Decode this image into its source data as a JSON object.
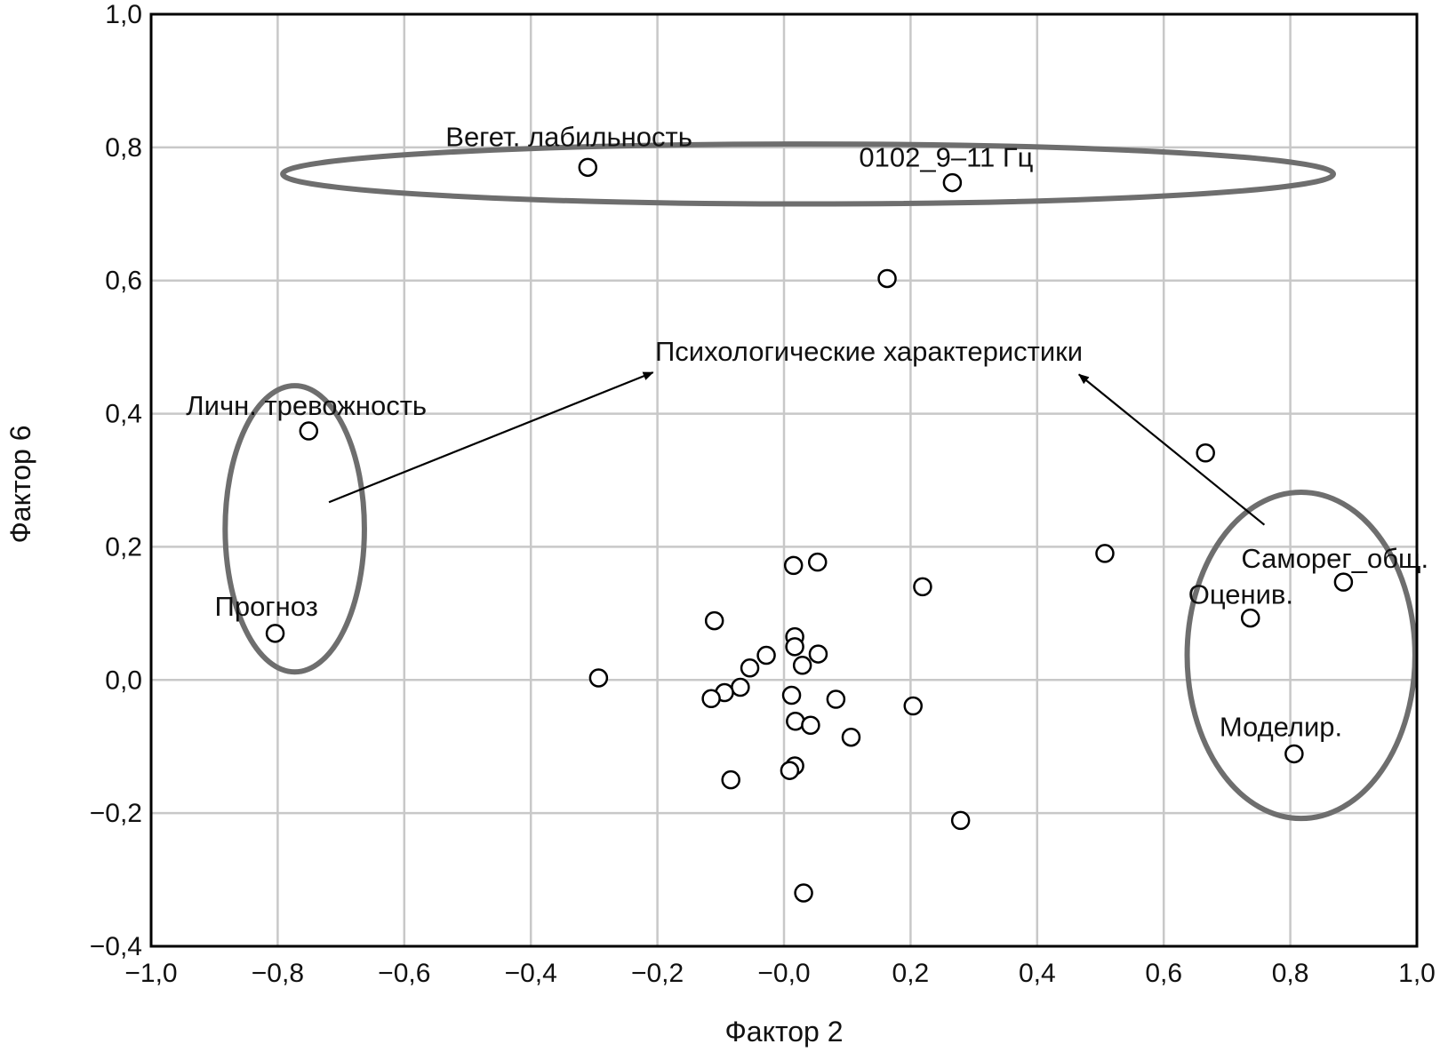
{
  "chart_data": {
    "type": "scatter",
    "xlabel": "Фактор 2",
    "ylabel": "Фактор 6",
    "xlim": [
      -1.0,
      1.0
    ],
    "ylim": [
      -0.4,
      1.0
    ],
    "xticks": [
      "−1,0",
      "−0,8",
      "−0,6",
      "−0,4",
      "−0,2",
      "−0,0",
      "0,2",
      "0,4",
      "0,6",
      "0,8",
      "1,0"
    ],
    "yticks": [
      "−0,4",
      "−0,2",
      "0,0",
      "0,2",
      "0,4",
      "0,6",
      "0,8",
      "1,0"
    ],
    "grid": true,
    "points": [
      {
        "x": -0.31,
        "y": 0.77,
        "label": "Вегет. лабильность"
      },
      {
        "x": 0.266,
        "y": 0.747,
        "label": "0102_9–11 Гц"
      },
      {
        "x": 0.163,
        "y": 0.603
      },
      {
        "x": -0.751,
        "y": 0.374,
        "label": "Личн. тревожность"
      },
      {
        "x": -0.804,
        "y": 0.07,
        "label": "Прогноз"
      },
      {
        "x": 0.666,
        "y": 0.341
      },
      {
        "x": 0.507,
        "y": 0.19
      },
      {
        "x": 0.884,
        "y": 0.147,
        "label": "Саморег_общ."
      },
      {
        "x": 0.737,
        "y": 0.093,
        "label": "Оценив."
      },
      {
        "x": 0.806,
        "y": -0.111,
        "label": "Моделир."
      },
      {
        "x": 0.279,
        "y": -0.211
      },
      {
        "x": 0.031,
        "y": -0.32
      },
      {
        "x": -0.293,
        "y": 0.003
      },
      {
        "x": 0.015,
        "y": 0.172
      },
      {
        "x": 0.053,
        "y": 0.177
      },
      {
        "x": 0.219,
        "y": 0.14
      },
      {
        "x": -0.11,
        "y": 0.089
      },
      {
        "x": 0.017,
        "y": 0.065
      },
      {
        "x": 0.017,
        "y": 0.05
      },
      {
        "x": -0.028,
        "y": 0.037
      },
      {
        "x": 0.054,
        "y": 0.039
      },
      {
        "x": 0.029,
        "y": 0.022
      },
      {
        "x": -0.054,
        "y": 0.018
      },
      {
        "x": -0.069,
        "y": -0.011
      },
      {
        "x": -0.094,
        "y": -0.019
      },
      {
        "x": -0.115,
        "y": -0.028
      },
      {
        "x": 0.012,
        "y": -0.023
      },
      {
        "x": 0.082,
        "y": -0.029
      },
      {
        "x": 0.204,
        "y": -0.039
      },
      {
        "x": 0.018,
        "y": -0.062
      },
      {
        "x": 0.042,
        "y": -0.068
      },
      {
        "x": 0.106,
        "y": -0.086
      },
      {
        "x": 0.017,
        "y": -0.129
      },
      {
        "x": 0.009,
        "y": -0.136
      },
      {
        "x": -0.084,
        "y": -0.15
      }
    ],
    "annotation": "Психологические характеристики"
  }
}
